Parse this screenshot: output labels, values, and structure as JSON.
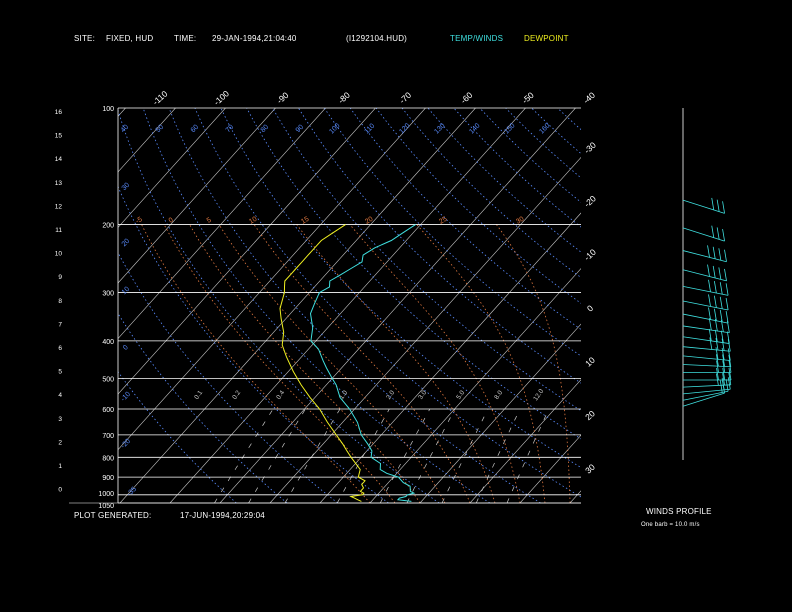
{
  "header": {
    "site_label": "SITE:",
    "site_value": "FIXED, HUD",
    "time_label": "TIME:",
    "time_value": "29-JAN-1994,21:04:40",
    "file_id": "(I1292104.HUD)",
    "legend_temp": "TEMP/WINDS",
    "legend_dew": "DEWPOINT"
  },
  "footer": {
    "generated_label": "PLOT GENERATED:",
    "generated_value": "17-JUN-1994,20:29:04",
    "winds_profile_label": "WINDS PROFILE",
    "barb_note": "One barb = 10.0 m/s"
  },
  "colors": {
    "temp": "#3fe0e0",
    "dew": "#f0f020",
    "isotherm": "#c8c8c8",
    "dry_adiabat": "#5a8cff",
    "moist_adiabat": "#e07840",
    "mixing_ratio": "#c8c8c8",
    "grid": "#ffffff"
  },
  "chart_data": {
    "type": "line",
    "title": "",
    "y_pressure_labels": [
      "100",
      "200",
      "300",
      "400",
      "500",
      "600",
      "700",
      "800",
      "900",
      "1000",
      "1050"
    ],
    "y_pressure_values": [
      100,
      200,
      300,
      400,
      500,
      600,
      700,
      800,
      900,
      1000,
      1050
    ],
    "y_height_km_labels": [
      "16",
      "15",
      "14",
      "13",
      "12",
      "11",
      "10",
      "9",
      "8",
      "7",
      "6",
      "5",
      "4",
      "3",
      "2",
      "1",
      "0"
    ],
    "temp_labels_top": [
      "-110",
      "-100",
      "-90",
      "-80",
      "-70",
      "-60",
      "-50",
      "-40"
    ],
    "temp_labels_right": [
      "-30",
      "-20",
      "-10",
      "0",
      "10",
      "20",
      "30"
    ],
    "dry_adiabat_labels": [
      "40",
      "50",
      "60",
      "70",
      "80",
      "90",
      "100",
      "110",
      "120",
      "130",
      "140",
      "150",
      "160"
    ],
    "dry_adiabat_left_labels": [
      "30",
      "20",
      "10",
      "0",
      "-10",
      "-20",
      "-30",
      "-35"
    ],
    "moist_adiabat_labels": [
      "-5",
      "0",
      "5",
      "10",
      "15",
      "20",
      "25",
      "30"
    ],
    "mixing_ratio_labels": [
      "0.1",
      "0.2",
      "0.4",
      "1.0",
      "2.0",
      "3.0",
      "5.0",
      "8.0",
      "12.0"
    ],
    "series": [
      {
        "name": "TEMP/WINDS",
        "points": [
          [
            1040,
            -2
          ],
          [
            1030,
            -5
          ],
          [
            1020,
            -5
          ],
          [
            1010,
            -4
          ],
          [
            1000,
            -4
          ],
          [
            990,
            -3
          ],
          [
            980,
            -4
          ],
          [
            950,
            -5
          ],
          [
            930,
            -7
          ],
          [
            900,
            -9
          ],
          [
            880,
            -12
          ],
          [
            860,
            -14
          ],
          [
            830,
            -15
          ],
          [
            800,
            -18
          ],
          [
            770,
            -19
          ],
          [
            740,
            -21
          ],
          [
            700,
            -24
          ],
          [
            650,
            -27
          ],
          [
            600,
            -31
          ],
          [
            560,
            -35
          ],
          [
            520,
            -38
          ],
          [
            500,
            -40
          ],
          [
            470,
            -43
          ],
          [
            450,
            -45
          ],
          [
            420,
            -48
          ],
          [
            400,
            -51
          ],
          [
            370,
            -53
          ],
          [
            340,
            -56
          ],
          [
            320,
            -57
          ],
          [
            300,
            -58
          ],
          [
            290,
            -57
          ],
          [
            280,
            -58
          ],
          [
            270,
            -57
          ],
          [
            260,
            -56
          ],
          [
            250,
            -55
          ],
          [
            240,
            -56
          ],
          [
            230,
            -55
          ],
          [
            220,
            -53
          ],
          [
            210,
            -52
          ],
          [
            200,
            -51
          ]
        ]
      },
      {
        "name": "DEWPOINT",
        "points": [
          [
            1040,
            -12
          ],
          [
            1030,
            -13
          ],
          [
            1020,
            -14
          ],
          [
            1010,
            -15
          ],
          [
            1000,
            -13
          ],
          [
            990,
            -13
          ],
          [
            980,
            -14
          ],
          [
            960,
            -14
          ],
          [
            940,
            -15
          ],
          [
            920,
            -15
          ],
          [
            900,
            -17
          ],
          [
            860,
            -18
          ],
          [
            800,
            -22
          ],
          [
            770,
            -24
          ],
          [
            740,
            -26
          ],
          [
            700,
            -29
          ],
          [
            650,
            -33
          ],
          [
            600,
            -37
          ],
          [
            560,
            -41
          ],
          [
            520,
            -45
          ],
          [
            480,
            -49
          ],
          [
            440,
            -53
          ],
          [
            410,
            -56
          ],
          [
            380,
            -58
          ],
          [
            350,
            -61
          ],
          [
            330,
            -63
          ],
          [
            300,
            -65
          ],
          [
            290,
            -66
          ],
          [
            280,
            -67
          ],
          [
            270,
            -67
          ],
          [
            260,
            -67
          ],
          [
            250,
            -67
          ],
          [
            240,
            -67
          ],
          [
            230,
            -67
          ],
          [
            220,
            -67
          ],
          [
            210,
            -66
          ],
          [
            200,
            -65
          ]
        ]
      }
    ],
    "wind_barbs": [
      {
        "p": 1050,
        "dir_deg": 240,
        "speed_ms": 8
      },
      {
        "p": 1000,
        "dir_deg": 250,
        "speed_ms": 15
      },
      {
        "p": 950,
        "dir_deg": 260,
        "speed_ms": 22
      },
      {
        "p": 900,
        "dir_deg": 265,
        "speed_ms": 28
      },
      {
        "p": 850,
        "dir_deg": 270,
        "speed_ms": 30
      },
      {
        "p": 800,
        "dir_deg": 270,
        "speed_ms": 32
      },
      {
        "p": 750,
        "dir_deg": 275,
        "speed_ms": 30
      },
      {
        "p": 700,
        "dir_deg": 280,
        "speed_ms": 32
      },
      {
        "p": 650,
        "dir_deg": 280,
        "speed_ms": 35
      },
      {
        "p": 600,
        "dir_deg": 285,
        "speed_ms": 38
      },
      {
        "p": 550,
        "dir_deg": 285,
        "speed_ms": 40
      },
      {
        "p": 500,
        "dir_deg": 290,
        "speed_ms": 42
      },
      {
        "p": 450,
        "dir_deg": 290,
        "speed_ms": 42
      },
      {
        "p": 400,
        "dir_deg": 290,
        "speed_ms": 40
      },
      {
        "p": 350,
        "dir_deg": 295,
        "speed_ms": 38
      },
      {
        "p": 300,
        "dir_deg": 295,
        "speed_ms": 35
      },
      {
        "p": 250,
        "dir_deg": 300,
        "speed_ms": 30
      },
      {
        "p": 200,
        "dir_deg": 300,
        "speed_ms": 25
      }
    ]
  }
}
